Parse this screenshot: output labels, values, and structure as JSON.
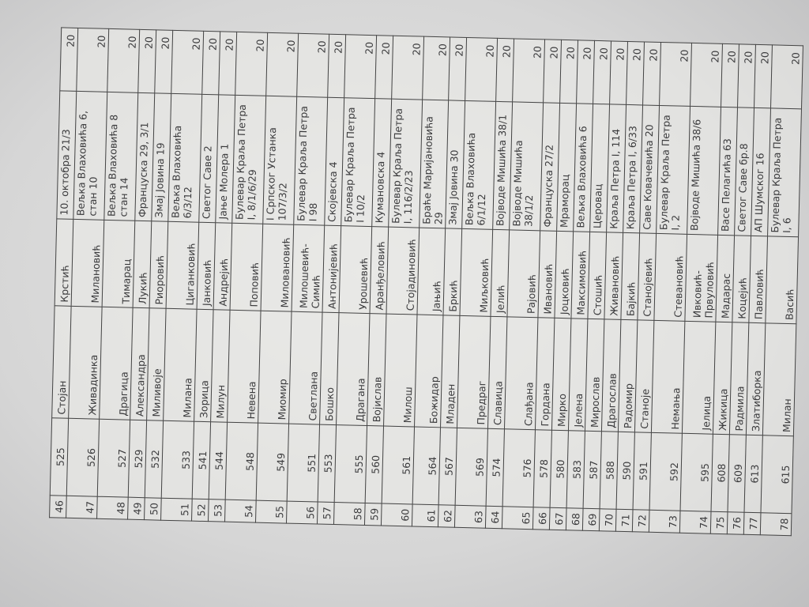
{
  "table": {
    "rows": [
      {
        "no": "46",
        "id": "525",
        "first_name": "Стојан",
        "last_name": "Крстић",
        "address": "10. октобра 21/3",
        "value": "20",
        "tall": false
      },
      {
        "no": "47",
        "id": "526",
        "first_name": "Живадинка",
        "last_name": "Милановић",
        "address": "Вељка Влаховића 6, стан 10",
        "value": "20",
        "tall": true
      },
      {
        "no": "48",
        "id": "527",
        "first_name": "Драгица",
        "last_name": "Тимарац",
        "address": "Вељка Влаховића 8 стан 14",
        "value": "20",
        "tall": true
      },
      {
        "no": "49",
        "id": "529",
        "first_name": "Александра",
        "last_name": "Лукић",
        "address": "Француска 29, 3/1",
        "value": "20",
        "tall": false
      },
      {
        "no": "50",
        "id": "532",
        "first_name": "Миливоје",
        "last_name": "Риоровић",
        "address": "Змај Јовина 19",
        "value": "20",
        "tall": false
      },
      {
        "no": "51",
        "id": "533",
        "first_name": "Милана",
        "last_name": "Циганковић",
        "address": "Вељка Влаховића 6/3/12",
        "value": "20",
        "tall": true
      },
      {
        "no": "52",
        "id": "541",
        "first_name": "Зорица",
        "last_name": "Јанковић",
        "address": "Светог Саве 2",
        "value": "20",
        "tall": false
      },
      {
        "no": "53",
        "id": "544",
        "first_name": "Милун",
        "last_name": "Андрејић",
        "address": "Јање Молера 1",
        "value": "20",
        "tall": false
      },
      {
        "no": "54",
        "id": "548",
        "first_name": "Невена",
        "last_name": "Поповић",
        "address": "Булевар Краља Петра I, 8/1/6/29",
        "value": "20",
        "tall": true
      },
      {
        "no": "55",
        "id": "549",
        "first_name": "Миомир",
        "last_name": "Миловановић",
        "address": "I Српског Устанка 107/3/2",
        "value": "20",
        "tall": true
      },
      {
        "no": "56",
        "id": "551",
        "first_name": "Светлана",
        "last_name": "Милошевић-Симић",
        "address": "Булевар Краља Петра I 98",
        "value": "20",
        "tall": true
      },
      {
        "no": "57",
        "id": "553",
        "first_name": "Бошко",
        "last_name": "Антонијевић",
        "address": "Скојевска 4",
        "value": "20",
        "tall": false
      },
      {
        "no": "58",
        "id": "555",
        "first_name": "Драгана",
        "last_name": "Урошевић",
        "address": "Булевар Краља Петра I 10/2",
        "value": "20",
        "tall": true
      },
      {
        "no": "59",
        "id": "560",
        "first_name": "Војислав",
        "last_name": "Аранђеловић",
        "address": "Кумановска 4",
        "value": "20",
        "tall": false
      },
      {
        "no": "60",
        "id": "561",
        "first_name": "Милош",
        "last_name": "Стојадиновић",
        "address": "Булевар Краља Петра I, 116/2/23",
        "value": "20",
        "tall": true
      },
      {
        "no": "61",
        "id": "564",
        "first_name": "Божидар",
        "last_name": "Јањић",
        "address": "Браће Маријановића 29",
        "value": "20",
        "tall": false
      },
      {
        "no": "62",
        "id": "567",
        "first_name": "Младен",
        "last_name": "Бркић",
        "address": "Змај Јовина 30",
        "value": "20",
        "tall": false
      },
      {
        "no": "63",
        "id": "569",
        "first_name": "Предраг",
        "last_name": "Миљковић",
        "address": "Вељка Влаховића 6/1/12",
        "value": "20",
        "tall": true
      },
      {
        "no": "64",
        "id": "574",
        "first_name": "Славица",
        "last_name": "Јелић",
        "address": "Војводе Мишића 38/1",
        "value": "20",
        "tall": false
      },
      {
        "no": "65",
        "id": "576",
        "first_name": "Слађана",
        "last_name": "Рајовић",
        "address": "Војводе Мишића 38/1/2",
        "value": "20",
        "tall": true
      },
      {
        "no": "66",
        "id": "578",
        "first_name": "Гордана",
        "last_name": "Ивановић",
        "address": "Француска 27/2",
        "value": "20",
        "tall": false
      },
      {
        "no": "67",
        "id": "580",
        "first_name": "Мирко",
        "last_name": "Јоцковић",
        "address": "Мраморац",
        "value": "20",
        "tall": false
      },
      {
        "no": "68",
        "id": "583",
        "first_name": "Јелена",
        "last_name": "Максимовић",
        "address": "Вељка Влаховића 6",
        "value": "20",
        "tall": false
      },
      {
        "no": "69",
        "id": "587",
        "first_name": "Мирослав",
        "last_name": "Стошић",
        "address": "Церовац",
        "value": "20",
        "tall": false
      },
      {
        "no": "70",
        "id": "588",
        "first_name": "Драгослав",
        "last_name": "Живановић",
        "address": "Краља Петра I, 114",
        "value": "20",
        "tall": false
      },
      {
        "no": "71",
        "id": "590",
        "first_name": "Радомир",
        "last_name": "Бајкић",
        "address": "Краља Петра I, 6/33",
        "value": "20",
        "tall": false
      },
      {
        "no": "72",
        "id": "591",
        "first_name": "Станоје",
        "last_name": "Станојевић",
        "address": "Саве Ковачевића 20",
        "value": "20",
        "tall": false
      },
      {
        "no": "73",
        "id": "592",
        "first_name": "Немања",
        "last_name": "Стевановић",
        "address": "Булевар Краља Петра I, 2",
        "value": "20",
        "tall": true
      },
      {
        "no": "74",
        "id": "595",
        "first_name": "Јелица",
        "last_name": "Ивковић-Првуловић",
        "address": "Војводе Мишића 38/6",
        "value": "20",
        "tall": true
      },
      {
        "no": "75",
        "id": "608",
        "first_name": "Жикица",
        "last_name": "Мадарас",
        "address": "Васе Пелагића 63",
        "value": "20",
        "tall": false
      },
      {
        "no": "76",
        "id": "609",
        "first_name": "Радмила",
        "last_name": "Коцејић",
        "address": "Светог Саве бр.8",
        "value": "20",
        "tall": false
      },
      {
        "no": "77",
        "id": "613",
        "first_name": "Златиборка",
        "last_name": "Павловић",
        "address": "АП Шумског 16",
        "value": "20",
        "tall": false
      },
      {
        "no": "78",
        "id": "615",
        "first_name": "Милан",
        "last_name": "Васић",
        "address": "Булевар Краља Петра I, 6",
        "value": "20",
        "tall": true
      }
    ]
  }
}
